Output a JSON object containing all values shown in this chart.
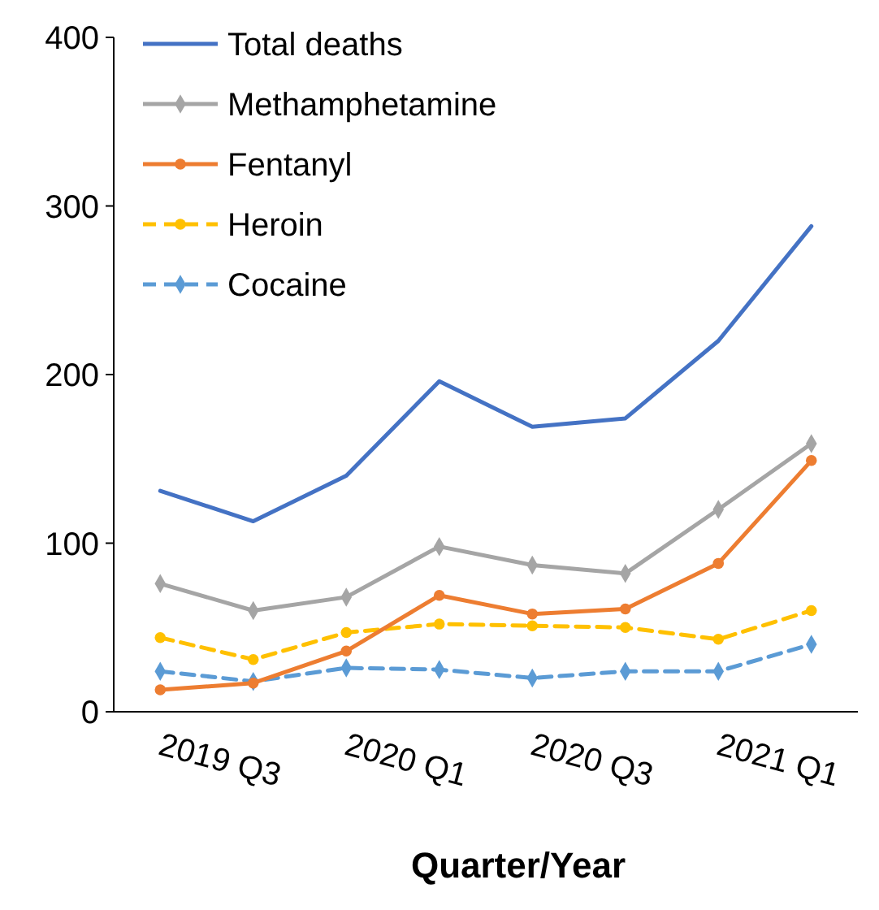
{
  "chart_data": {
    "type": "line",
    "xlabel": "Quarter/Year",
    "categories": [
      "2019 Q3",
      null,
      "2020 Q1",
      null,
      "2020 Q3",
      null,
      "2021 Q1",
      null
    ],
    "series": [
      {
        "name": "Total deaths",
        "color": "#4472c4",
        "marker": "none",
        "line_style": "solid",
        "values": [
          131,
          113,
          140,
          196,
          169,
          174,
          220,
          288
        ]
      },
      {
        "name": "Methamphetamine",
        "color": "#a5a5a5",
        "marker": "diamond",
        "line_style": "solid",
        "values": [
          76,
          60,
          68,
          98,
          87,
          82,
          120,
          159
        ]
      },
      {
        "name": "Fentanyl",
        "color": "#ed7d31",
        "marker": "circle",
        "line_style": "solid",
        "values": [
          13,
          17,
          36,
          69,
          58,
          61,
          88,
          149
        ]
      },
      {
        "name": "Heroin",
        "color": "#ffc000",
        "marker": "circle",
        "line_style": "dashed",
        "values": [
          44,
          31,
          47,
          52,
          51,
          50,
          43,
          60
        ]
      },
      {
        "name": "Cocaine",
        "color": "#5b9bd5",
        "marker": "diamond",
        "line_style": "dashed",
        "values": [
          24,
          18,
          26,
          25,
          20,
          24,
          24,
          40
        ]
      }
    ],
    "ylim": [
      0,
      400
    ],
    "yticks": [
      0,
      100,
      200,
      300,
      400
    ],
    "grid": false,
    "legend": "top left"
  }
}
